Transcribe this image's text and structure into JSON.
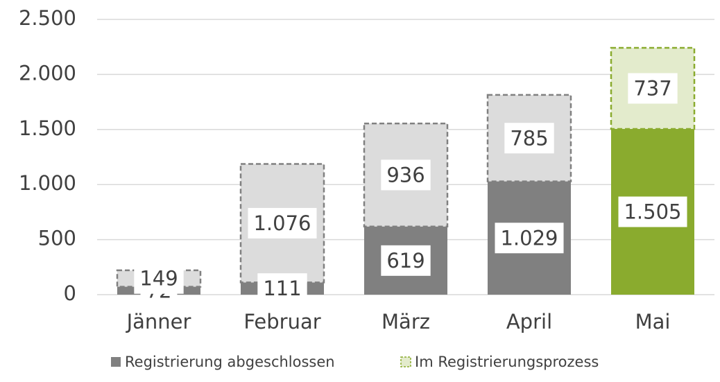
{
  "chart_data": {
    "type": "stacked_bar",
    "categories": [
      "Jänner",
      "Februar",
      "März",
      "April",
      "Mai"
    ],
    "series": [
      {
        "name": "Registrierung abgeschlossen",
        "color": "#808080",
        "colors": [
          "#808080",
          "#808080",
          "#808080",
          "#808080",
          "#8aab2e"
        ],
        "values": [
          72,
          111,
          619,
          1029,
          1505
        ],
        "value_labels": [
          "72",
          "111",
          "619",
          "1.029",
          "1.505"
        ]
      },
      {
        "name": "Im Registrierungsprozess",
        "color": "#e3ebcc",
        "colors": [
          "#dcdcdc",
          "#dcdcdc",
          "#dcdcdc",
          "#dcdcdc",
          "#e3ebcc"
        ],
        "values": [
          149,
          1076,
          936,
          785,
          737
        ],
        "value_labels": [
          "149",
          "1.076",
          "936",
          "785",
          "737"
        ]
      }
    ],
    "ylim": [
      0,
      2500
    ],
    "yticks": [
      0,
      500,
      {
        "value": 1000,
        "label": "1.000"
      },
      {
        "value": 1500,
        "label": "1.500"
      },
      {
        "value": 2000,
        "label": "2.000"
      },
      {
        "value": 2500,
        "label": "2.500"
      }
    ],
    "grid": true,
    "legend": "bottom"
  }
}
